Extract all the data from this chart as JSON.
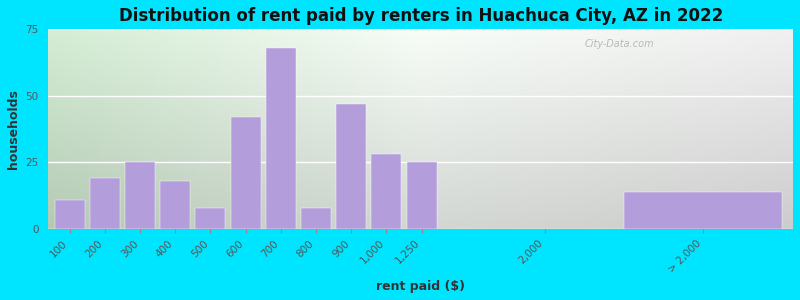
{
  "title": "Distribution of rent paid by renters in Huachuca City, AZ in 2022",
  "xlabel": "rent paid ($)",
  "ylabel": "households",
  "bar_color": "#b39ddb",
  "background_outer": "#00e5ff",
  "ylim": [
    0,
    75
  ],
  "yticks": [
    0,
    25,
    50,
    75
  ],
  "categories": [
    "100",
    "200",
    "300",
    "400",
    "500",
    "600",
    "700",
    "800",
    "900",
    "1,000",
    "1,250",
    "2,000",
    "> 2,000"
  ],
  "values": [
    11,
    19,
    25,
    18,
    8,
    42,
    68,
    8,
    47,
    28,
    25,
    0,
    14
  ],
  "title_fontsize": 12,
  "axis_label_fontsize": 9,
  "tick_fontsize": 7.5
}
